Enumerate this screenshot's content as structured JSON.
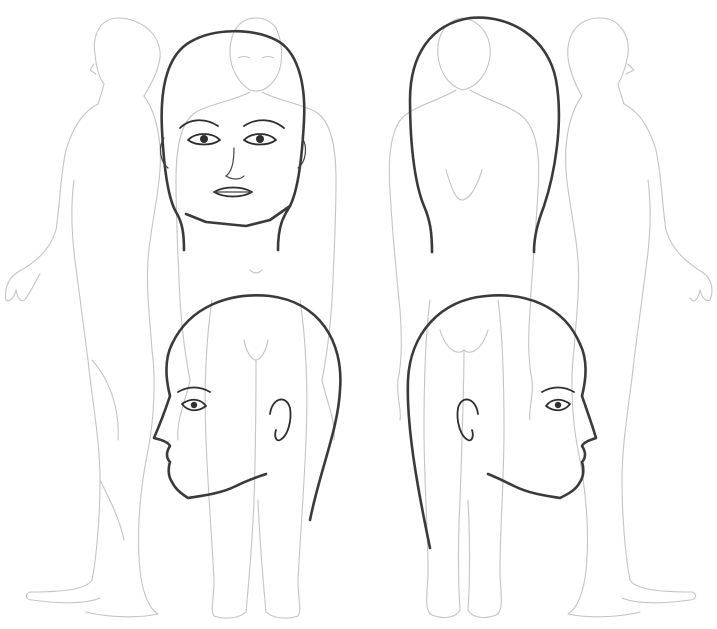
{
  "sheet": {
    "background": "#ffffff",
    "body_stroke_color": "#c4c4c4",
    "head_stroke_color": "#3a3a3a"
  },
  "figures": [
    {
      "view": "side-left",
      "style": "light outline"
    },
    {
      "view": "front",
      "style": "light outline"
    },
    {
      "view": "back",
      "style": "light outline"
    },
    {
      "view": "side-right",
      "style": "light outline"
    }
  ],
  "heads": [
    {
      "view": "front",
      "style": "bold outline"
    },
    {
      "view": "back",
      "style": "bold outline"
    },
    {
      "view": "profile-left",
      "style": "bold outline"
    },
    {
      "view": "profile-right",
      "style": "bold outline"
    }
  ]
}
